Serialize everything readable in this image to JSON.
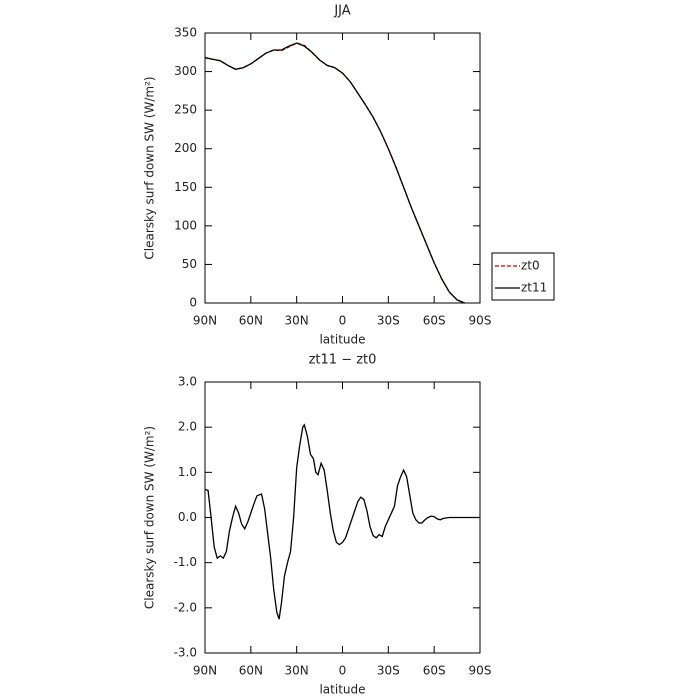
{
  "chart_data": [
    {
      "type": "line",
      "title": "JJA",
      "xlabel": "latitude",
      "ylabel": "Clearsky surf down SW (W/m²)",
      "x": [
        90,
        85,
        80,
        75,
        70,
        65,
        60,
        55,
        50,
        45,
        40,
        35,
        30,
        25,
        20,
        15,
        10,
        5,
        0,
        -5,
        -10,
        -15,
        -20,
        -25,
        -30,
        -35,
        -40,
        -45,
        -50,
        -55,
        -60,
        -65,
        -70,
        -75,
        -80
      ],
      "series": [
        {
          "name": "zt0",
          "color": "#cc0000",
          "linestyle": "dashed",
          "values": [
            318,
            316,
            314,
            308,
            303,
            305,
            310,
            317,
            324,
            328,
            327,
            332,
            337,
            334,
            325,
            315,
            308,
            305,
            298,
            287,
            272,
            257,
            241,
            222,
            200,
            176,
            150,
            124,
            100,
            76,
            52,
            31,
            14,
            4,
            0
          ]
        },
        {
          "name": "zt11",
          "color": "#000000",
          "linestyle": "solid",
          "values": [
            318,
            316,
            314,
            308,
            303,
            305,
            310,
            317,
            324,
            328,
            328,
            333,
            337,
            333,
            325,
            315,
            308,
            305,
            298,
            287,
            272,
            257,
            241,
            222,
            200,
            176,
            150,
            124,
            100,
            76,
            52,
            31,
            14,
            4,
            0
          ]
        }
      ],
      "xlim": [
        90,
        -90
      ],
      "xticks": [
        {
          "value": 90,
          "label": "90N"
        },
        {
          "value": 60,
          "label": "60N"
        },
        {
          "value": 30,
          "label": "30N"
        },
        0,
        {
          "value": -30,
          "label": "30S"
        },
        {
          "value": -60,
          "label": "60S"
        },
        {
          "value": -90,
          "label": "90S"
        }
      ],
      "ylim": [
        0,
        350
      ],
      "yticks": [
        0,
        50,
        100,
        150,
        200,
        250,
        300,
        350
      ],
      "legend": "right"
    },
    {
      "type": "line",
      "title": "zt11 − zt0",
      "xlabel": "latitude",
      "ylabel": "Clearsky surf down SW (W/m²)",
      "x": [
        90,
        88,
        86,
        84,
        82,
        80,
        78,
        76,
        74,
        72,
        70,
        68,
        66,
        64,
        62,
        60,
        58,
        56,
        53,
        51,
        49,
        47,
        45,
        43,
        41.5,
        40,
        38,
        36,
        34,
        32,
        30,
        28,
        26,
        25,
        23,
        21,
        19,
        17.5,
        16,
        14,
        12,
        10,
        8,
        6,
        4,
        2,
        0,
        -2,
        -4,
        -6,
        -8,
        -10,
        -12,
        -14,
        -16,
        -18,
        -20,
        -22,
        -24,
        -26,
        -28,
        -30,
        -32,
        -34,
        -36,
        -38,
        -40,
        -42,
        -44,
        -46,
        -48,
        -50,
        -52,
        -54,
        -56,
        -58,
        -60,
        -62,
        -64,
        -66,
        -70,
        -75,
        -80,
        -85,
        -90
      ],
      "values": [
        0.62,
        0.6,
        0.0,
        -0.65,
        -0.9,
        -0.85,
        -0.9,
        -0.75,
        -0.3,
        0.0,
        0.25,
        0.1,
        -0.15,
        -0.25,
        -0.1,
        0.1,
        0.3,
        0.48,
        0.52,
        0.2,
        -0.35,
        -0.9,
        -1.6,
        -2.1,
        -2.25,
        -1.9,
        -1.3,
        -1.0,
        -0.75,
        0.0,
        1.1,
        1.6,
        2.0,
        2.05,
        1.8,
        1.4,
        1.3,
        1.0,
        0.95,
        1.2,
        1.05,
        0.6,
        0.1,
        -0.3,
        -0.55,
        -0.6,
        -0.55,
        -0.45,
        -0.25,
        -0.05,
        0.15,
        0.35,
        0.45,
        0.4,
        0.15,
        -0.2,
        -0.4,
        -0.45,
        -0.38,
        -0.42,
        -0.2,
        -0.05,
        0.1,
        0.25,
        0.7,
        0.9,
        1.05,
        0.9,
        0.5,
        0.1,
        -0.05,
        -0.12,
        -0.12,
        -0.05,
        0.0,
        0.03,
        0.02,
        -0.03,
        -0.05,
        -0.02,
        0.0,
        0.0,
        0.0,
        0.0,
        0.0
      ],
      "color": "#000000",
      "xlim": [
        90,
        -90
      ],
      "xticks": [
        {
          "value": 90,
          "label": "90N"
        },
        {
          "value": 60,
          "label": "60N"
        },
        {
          "value": 30,
          "label": "30N"
        },
        0,
        {
          "value": -30,
          "label": "30S"
        },
        {
          "value": -60,
          "label": "60S"
        },
        {
          "value": -90,
          "label": "90S"
        }
      ],
      "ylim": [
        -3,
        3
      ],
      "yticks": [
        {
          "value": -3,
          "label": "-3.0"
        },
        {
          "value": -2,
          "label": "-2.0"
        },
        {
          "value": -1,
          "label": "-1.0"
        },
        {
          "value": 0,
          "label": "0.0"
        },
        {
          "value": 1,
          "label": "1.0"
        },
        {
          "value": 2,
          "label": "2.0"
        },
        {
          "value": 3,
          "label": "3.0"
        }
      ]
    }
  ]
}
